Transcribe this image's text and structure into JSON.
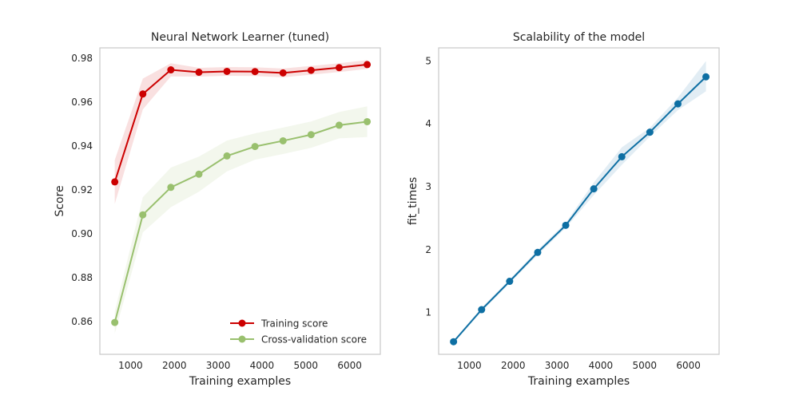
{
  "chart_data": [
    {
      "type": "line",
      "title": "Neural Network Learner (tuned)",
      "xlabel": "Training examples",
      "ylabel": "Score",
      "xlim": [
        300,
        6700
      ],
      "ylim": [
        0.845,
        0.9845
      ],
      "xticks": [
        1000,
        2000,
        3000,
        4000,
        5000,
        6000
      ],
      "yticks": [
        0.86,
        0.88,
        0.9,
        0.92,
        0.94,
        0.96,
        0.98
      ],
      "ytick_labels": [
        "0.86",
        "0.88",
        "0.90",
        "0.92",
        "0.94",
        "0.96",
        "0.98"
      ],
      "grid": false,
      "legend_position": "lower-right",
      "x": [
        640,
        1280,
        1920,
        2560,
        3200,
        3840,
        4480,
        5120,
        5760,
        6400
      ],
      "series": [
        {
          "name": "Training score",
          "color": "#cc0000",
          "values": [
            0.9235,
            0.9635,
            0.9745,
            0.9734,
            0.9738,
            0.9737,
            0.9731,
            0.9743,
            0.9755,
            0.9769
          ],
          "band_upper": [
            0.9335,
            0.9705,
            0.9775,
            0.9754,
            0.9758,
            0.9757,
            0.9751,
            0.9763,
            0.9775,
            0.9789
          ],
          "band_lower": [
            0.9135,
            0.9565,
            0.9715,
            0.9714,
            0.9718,
            0.9717,
            0.9711,
            0.9723,
            0.9735,
            0.9749
          ]
        },
        {
          "name": "Cross-validation score",
          "color": "#99c06e",
          "values": [
            0.8595,
            0.9085,
            0.921,
            0.927,
            0.9353,
            0.9396,
            0.9422,
            0.945,
            0.9493,
            0.9509
          ],
          "band_upper": [
            0.8645,
            0.9165,
            0.93,
            0.935,
            0.9423,
            0.9456,
            0.9482,
            0.951,
            0.9553,
            0.9579
          ],
          "band_lower": [
            0.8545,
            0.9005,
            0.912,
            0.919,
            0.9283,
            0.9336,
            0.9362,
            0.939,
            0.9433,
            0.9439
          ]
        }
      ]
    },
    {
      "type": "line",
      "title": "Scalability of the model",
      "xlabel": "Training examples",
      "ylabel": "fit_times",
      "xlim": [
        300,
        6700
      ],
      "ylim": [
        0.33,
        5.2
      ],
      "xticks": [
        1000,
        2000,
        3000,
        4000,
        5000,
        6000
      ],
      "yticks": [
        1,
        2,
        3,
        4,
        5
      ],
      "ytick_labels": [
        "1",
        "2",
        "3",
        "4",
        "5"
      ],
      "grid": false,
      "x": [
        640,
        1280,
        1920,
        2560,
        3200,
        3840,
        4480,
        5120,
        5760,
        6400
      ],
      "series": [
        {
          "color": "#0e6fa3",
          "values": [
            0.53,
            1.04,
            1.49,
            1.95,
            2.38,
            2.96,
            3.47,
            3.86,
            4.31,
            4.74
          ],
          "band_upper": [
            0.55,
            1.07,
            1.52,
            1.99,
            2.42,
            3.06,
            3.62,
            3.93,
            4.41,
            4.99
          ],
          "band_lower": [
            0.51,
            1.01,
            1.46,
            1.91,
            2.34,
            2.86,
            3.34,
            3.79,
            4.21,
            4.51
          ]
        }
      ]
    }
  ]
}
